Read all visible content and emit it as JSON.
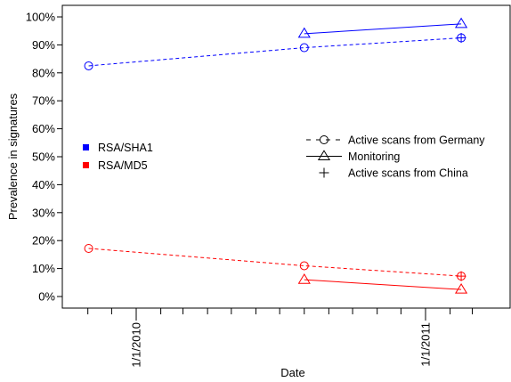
{
  "chart_data": {
    "type": "line",
    "title": "",
    "xlabel": "Date",
    "ylabel": "Prevalence in signatures",
    "x_tick_labels": [
      "1/1/2010",
      "1/1/2011"
    ],
    "y_tick_labels": [
      "0%",
      "10%",
      "20%",
      "30%",
      "40%",
      "50%",
      "60%",
      "70%",
      "80%",
      "90%",
      "100%"
    ],
    "ylim": [
      0,
      100
    ],
    "xlim": [
      "2009-10-01",
      "2011-03-31"
    ],
    "x_ticks": [
      "2009-11-01",
      "2009-12-01",
      "2010-01-01",
      "2010-02-01",
      "2010-03-01",
      "2010-04-01",
      "2010-05-01",
      "2010-06-01",
      "2010-07-01",
      "2010-08-01",
      "2010-09-01",
      "2010-10-01",
      "2010-11-01",
      "2010-12-01",
      "2011-01-01",
      "2011-02-01",
      "2011-03-01"
    ],
    "x_labeled_ticks": [
      "2010-01-01",
      "2011-01-01"
    ],
    "algorithm_legend": [
      {
        "label": "RSA/SHA1",
        "color": "#0000ff"
      },
      {
        "label": "RSA/MD5",
        "color": "#ff0000"
      }
    ],
    "source_legend": [
      {
        "label": "Active scans from Germany",
        "line": "dashed",
        "marker": "circle"
      },
      {
        "label": "Monitoring",
        "line": "solid",
        "marker": "triangle"
      },
      {
        "label": "Active scans from China",
        "line": "none",
        "marker": "plus"
      }
    ],
    "series": [
      {
        "algorithm": "RSA/SHA1",
        "source": "Active scans from Germany",
        "color": "#0000ff",
        "x": [
          "2009-11-02",
          "2010-08-01",
          "2011-02-15"
        ],
        "values": [
          82.5,
          89,
          92.5
        ]
      },
      {
        "algorithm": "RSA/SHA1",
        "source": "Monitoring",
        "color": "#0000ff",
        "x": [
          "2010-08-01",
          "2011-02-15"
        ],
        "values": [
          94,
          97.5
        ]
      },
      {
        "algorithm": "RSA/SHA1",
        "source": "Active scans from China",
        "color": "#0000ff",
        "x": [
          "2011-02-15"
        ],
        "values": [
          92.5
        ]
      },
      {
        "algorithm": "RSA/MD5",
        "source": "Active scans from Germany",
        "color": "#ff0000",
        "x": [
          "2009-11-02",
          "2010-08-01",
          "2011-02-15"
        ],
        "values": [
          17.2,
          11,
          7.3
        ]
      },
      {
        "algorithm": "RSA/MD5",
        "source": "Monitoring",
        "color": "#ff0000",
        "x": [
          "2010-08-01",
          "2011-02-15"
        ],
        "values": [
          6,
          2.5
        ]
      },
      {
        "algorithm": "RSA/MD5",
        "source": "Active scans from China",
        "color": "#ff0000",
        "x": [
          "2011-02-15"
        ],
        "values": [
          7.3
        ]
      }
    ]
  }
}
